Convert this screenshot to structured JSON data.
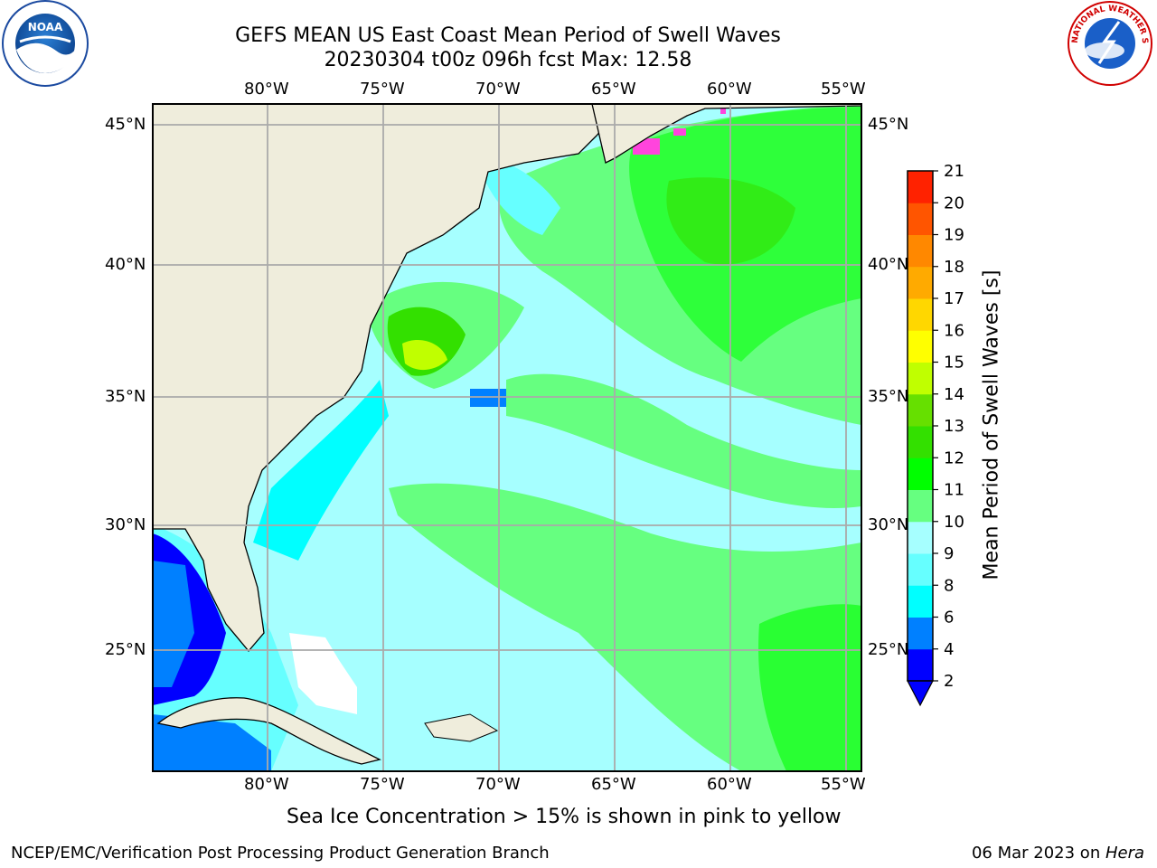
{
  "title_line1": "GEFS MEAN US East Coast Mean Period of Swell Waves",
  "title_line2": "20230304 t00z 096h fcst   Max: 12.58",
  "lon_labels": [
    "80°W",
    "75°W",
    "70°W",
    "65°W",
    "60°W",
    "55°W"
  ],
  "lat_labels": [
    "45°N",
    "40°N",
    "35°N",
    "30°N",
    "25°N"
  ],
  "colorbar": {
    "label": "Mean Period of Swell Waves [s]",
    "ticks": [
      "2",
      "4",
      "6",
      "8",
      "9",
      "10",
      "11",
      "12",
      "13",
      "14",
      "15",
      "16",
      "17",
      "18",
      "19",
      "20",
      "21"
    ],
    "colors": [
      "#0000ff",
      "#0080ff",
      "#00ffff",
      "#66ffff",
      "#a6ffff",
      "#66ff80",
      "#00ff00",
      "#33e000",
      "#66e000",
      "#c0ff00",
      "#ffff00",
      "#ffd700",
      "#ffaa00",
      "#ff8800",
      "#ff5500",
      "#ff2200",
      "#ff0000"
    ],
    "extend_color": "#0000ff"
  },
  "caption": "Sea Ice Concentration > 15% is shown in pink to yellow",
  "footer_left": "NCEP/EMC/Verification Post Processing Product Generation Branch",
  "footer_date": "06 Mar 2023 on ",
  "footer_host": "Hera",
  "logos": {
    "left": "NOAA",
    "right": "NATIONAL WEATHER SERVICE"
  }
}
